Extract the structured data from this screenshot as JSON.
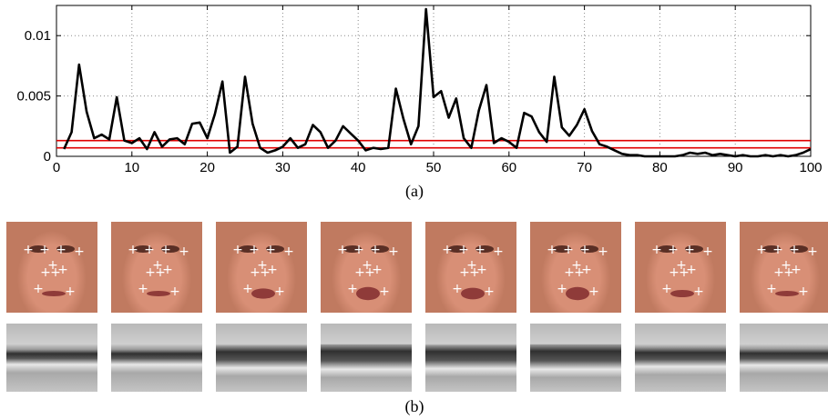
{
  "chart_data": {
    "type": "line",
    "title": "",
    "xlabel": "",
    "ylabel": "",
    "xlim": [
      0,
      100
    ],
    "ylim": [
      0,
      0.0125
    ],
    "grid": true,
    "x_ticks": [
      0,
      10,
      20,
      30,
      40,
      50,
      60,
      70,
      80,
      90,
      100
    ],
    "x_tick_labels": [
      "0",
      "10",
      "20",
      "30",
      "40",
      "50",
      "60",
      "70",
      "80",
      "90",
      "100"
    ],
    "y_ticks": [
      0,
      0.005,
      0.01
    ],
    "y_tick_labels": [
      "0",
      "0.005",
      "0.01"
    ],
    "series": [
      {
        "color": "#000000",
        "x": [
          1,
          2,
          3,
          4,
          5,
          6,
          7,
          8,
          9,
          10,
          11,
          12,
          13,
          14,
          15,
          16,
          17,
          18,
          19,
          20,
          21,
          22,
          23,
          24,
          25,
          26,
          27,
          28,
          29,
          30,
          31,
          32,
          33,
          34,
          35,
          36,
          37,
          38,
          39,
          40,
          41,
          42,
          43,
          44,
          45,
          46,
          47,
          48,
          49,
          50,
          51,
          52,
          53,
          54,
          55,
          56,
          57,
          58,
          59,
          60,
          61,
          62,
          63,
          64,
          65,
          66,
          67,
          68,
          69,
          70,
          71,
          72,
          73,
          74,
          75,
          76,
          77,
          78,
          79,
          80,
          81,
          82,
          83,
          84,
          85,
          86,
          87,
          88,
          89,
          90,
          91,
          92,
          93,
          94,
          95,
          96,
          97,
          98,
          99,
          100
        ],
        "values": [
          0.0006,
          0.002,
          0.0076,
          0.0037,
          0.0015,
          0.0018,
          0.0014,
          0.0049,
          0.0013,
          0.0011,
          0.0015,
          0.0006,
          0.002,
          0.0008,
          0.0014,
          0.0015,
          0.001,
          0.0027,
          0.0028,
          0.0015,
          0.0035,
          0.0062,
          0.0003,
          0.0008,
          0.0066,
          0.0027,
          0.0007,
          0.0003,
          0.0005,
          0.0008,
          0.0015,
          0.0007,
          0.001,
          0.0026,
          0.002,
          0.0007,
          0.0013,
          0.0025,
          0.0019,
          0.0013,
          0.0005,
          0.0007,
          0.0006,
          0.0007,
          0.0056,
          0.0031,
          0.001,
          0.0025,
          0.0122,
          0.0049,
          0.0054,
          0.0032,
          0.0048,
          0.0015,
          0.0007,
          0.0038,
          0.0059,
          0.0011,
          0.0015,
          0.0012,
          0.0007,
          0.0036,
          0.0033,
          0.002,
          0.0012,
          0.0066,
          0.0024,
          0.0017,
          0.0026,
          0.0039,
          0.0021,
          0.001,
          0.0008,
          0.0005,
          0.0002,
          0.0001,
          0.0001,
          0.0,
          0.0,
          0.0,
          0.0,
          0.0,
          0.0001,
          0.0003,
          0.0002,
          0.0003,
          0.0001,
          0.0002,
          0.0001,
          0.0,
          0.0001,
          0.0,
          0.0,
          0.0001,
          0.0,
          0.0001,
          0.0,
          0.0001,
          0.0003,
          0.0006
        ]
      }
    ],
    "threshold_lines": [
      {
        "y": 0.0007,
        "color": "#e00000"
      },
      {
        "y": 0.0013,
        "color": "#e00000"
      }
    ]
  },
  "captions": {
    "a": "(a)",
    "b": "(b)"
  },
  "frames": {
    "count": 8,
    "landmark_marker": "+",
    "colors": {
      "hair": "#a3461f",
      "skin": "#d88f76",
      "lip": "#8f3b39",
      "gray_light": "#cfcfcf",
      "gray_dark": "#303030"
    }
  }
}
